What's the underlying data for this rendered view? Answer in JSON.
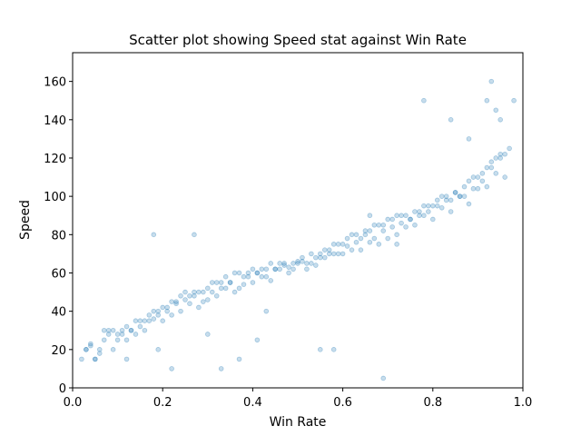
{
  "chart_data": {
    "type": "scatter",
    "title": "Scatter plot showing Speed stat against Win Rate",
    "xlabel": "Win Rate",
    "ylabel": "Speed",
    "xlim": [
      0.0,
      1.0
    ],
    "ylim": [
      0,
      175
    ],
    "xticks": [
      "0.0",
      "0.2",
      "0.4",
      "0.6",
      "0.8",
      "1.0"
    ],
    "xtick_values": [
      0.0,
      0.2,
      0.4,
      0.6,
      0.8,
      1.0
    ],
    "yticks": [
      "0",
      "20",
      "40",
      "60",
      "80",
      "100",
      "120",
      "140",
      "160"
    ],
    "ytick_values": [
      0,
      20,
      40,
      60,
      80,
      100,
      120,
      140,
      160
    ],
    "grid": false,
    "legend": "none",
    "marker_color": "#1f77b4",
    "marker_alpha": 0.25,
    "series": [
      {
        "x": [
          0.02,
          0.03,
          0.04,
          0.05,
          0.06,
          0.07,
          0.08,
          0.09,
          0.1,
          0.11,
          0.12,
          0.13,
          0.14,
          0.15,
          0.16,
          0.17,
          0.18,
          0.19,
          0.2,
          0.21,
          0.22,
          0.23,
          0.24,
          0.25,
          0.26,
          0.27,
          0.28,
          0.29,
          0.3,
          0.31,
          0.32,
          0.33,
          0.34,
          0.35,
          0.36,
          0.37,
          0.38,
          0.39,
          0.4,
          0.41,
          0.42,
          0.43,
          0.44,
          0.45,
          0.46,
          0.47,
          0.48,
          0.49,
          0.5,
          0.51,
          0.52,
          0.53,
          0.54,
          0.55,
          0.56,
          0.57,
          0.58,
          0.59,
          0.6,
          0.61,
          0.62,
          0.63,
          0.64,
          0.65,
          0.66,
          0.67,
          0.68,
          0.69,
          0.7,
          0.71,
          0.72,
          0.73,
          0.74,
          0.75,
          0.76,
          0.77,
          0.78,
          0.79,
          0.8,
          0.81,
          0.82,
          0.83,
          0.84,
          0.85,
          0.86,
          0.87,
          0.88,
          0.89,
          0.9,
          0.91,
          0.92,
          0.93,
          0.94,
          0.95,
          0.96,
          0.97,
          0.03,
          0.05,
          0.07,
          0.09,
          0.11,
          0.13,
          0.15,
          0.17,
          0.19,
          0.21,
          0.23,
          0.25,
          0.27,
          0.29,
          0.31,
          0.33,
          0.35,
          0.37,
          0.39,
          0.41,
          0.43,
          0.45,
          0.47,
          0.49,
          0.51,
          0.53,
          0.55,
          0.57,
          0.59,
          0.61,
          0.63,
          0.65,
          0.67,
          0.69,
          0.71,
          0.73,
          0.75,
          0.77,
          0.79,
          0.81,
          0.83,
          0.85,
          0.87,
          0.89,
          0.91,
          0.93,
          0.95,
          0.04,
          0.08,
          0.12,
          0.16,
          0.2,
          0.24,
          0.28,
          0.32,
          0.36,
          0.4,
          0.44,
          0.48,
          0.52,
          0.56,
          0.6,
          0.64,
          0.68,
          0.72,
          0.76,
          0.8,
          0.84,
          0.88,
          0.92,
          0.96,
          0.06,
          0.1,
          0.14,
          0.18,
          0.22,
          0.26,
          0.3,
          0.34,
          0.38,
          0.42,
          0.46,
          0.5,
          0.54,
          0.58,
          0.62,
          0.66,
          0.7,
          0.74,
          0.78,
          0.82,
          0.86,
          0.9,
          0.94,
          0.18,
          0.27,
          0.33,
          0.37,
          0.41,
          0.43,
          0.55,
          0.58,
          0.66,
          0.69,
          0.72,
          0.78,
          0.84,
          0.88,
          0.92,
          0.93,
          0.94,
          0.95,
          0.98,
          0.22,
          0.3,
          0.12,
          0.19
        ],
        "y": [
          15,
          20,
          23,
          15,
          20,
          30,
          30,
          30,
          28,
          30,
          25,
          30,
          35,
          35,
          35,
          38,
          40,
          40,
          42,
          40,
          45,
          45,
          48,
          50,
          48,
          50,
          50,
          50,
          52,
          55,
          55,
          55,
          58,
          55,
          60,
          60,
          58,
          60,
          62,
          60,
          62,
          62,
          65,
          62,
          65,
          65,
          63,
          65,
          65,
          68,
          65,
          70,
          68,
          70,
          72,
          70,
          75,
          75,
          75,
          78,
          80,
          80,
          78,
          82,
          82,
          85,
          85,
          85,
          88,
          88,
          90,
          90,
          90,
          88,
          92,
          92,
          95,
          95,
          95,
          98,
          100,
          100,
          98,
          102,
          100,
          105,
          108,
          110,
          110,
          112,
          115,
          118,
          120,
          120,
          122,
          125,
          20,
          15,
          25,
          20,
          28,
          30,
          32,
          35,
          38,
          42,
          44,
          46,
          48,
          45,
          50,
          52,
          55,
          52,
          58,
          60,
          58,
          62,
          64,
          62,
          66,
          65,
          68,
          72,
          70,
          74,
          76,
          80,
          78,
          82,
          84,
          86,
          88,
          90,
          92,
          95,
          98,
          102,
          100,
          104,
          108,
          115,
          122,
          22,
          28,
          32,
          30,
          35,
          40,
          42,
          48,
          50,
          55,
          56,
          60,
          62,
          68,
          70,
          72,
          75,
          80,
          85,
          88,
          92,
          96,
          105,
          110,
          18,
          25,
          28,
          36,
          38,
          44,
          46,
          52,
          54,
          58,
          62,
          66,
          64,
          70,
          72,
          76,
          78,
          84,
          90,
          94,
          100,
          104,
          112,
          80,
          80,
          10,
          15,
          25,
          40,
          20,
          20,
          90,
          5,
          75,
          150,
          140,
          130,
          150,
          160,
          145,
          140,
          150,
          10,
          28,
          15,
          20
        ]
      }
    ]
  }
}
